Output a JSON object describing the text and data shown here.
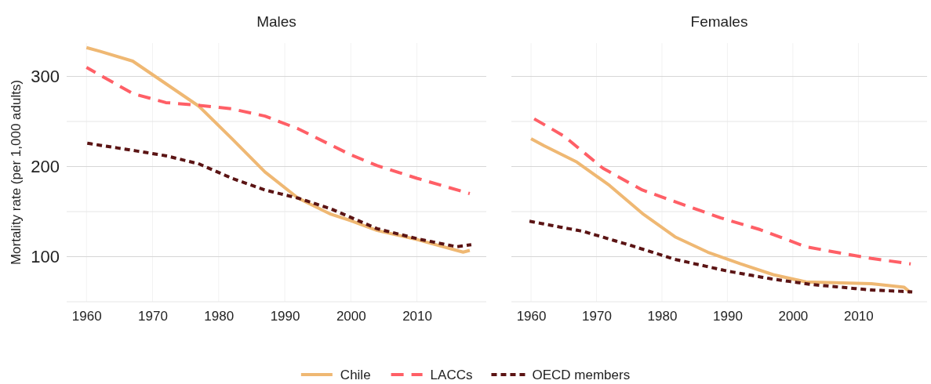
{
  "chart_data": [
    {
      "type": "line",
      "title": "Males",
      "ylabel": "Mortality rate (per 1,000 adults)",
      "xlim": [
        1957,
        2020.5
      ],
      "xticks": [
        1960,
        1970,
        1980,
        1990,
        2000,
        2010
      ],
      "ylim": [
        50,
        337
      ],
      "yticks": [
        {
          "value": 50,
          "label": null
        },
        100,
        {
          "value": 150,
          "label": null
        },
        200,
        {
          "value": 250,
          "label": null
        },
        300
      ],
      "grid": true,
      "legend": "bottom",
      "series": [
        {
          "name": "Chile",
          "color": "#efb873",
          "line_style": "solid",
          "x": [
            1960,
            1962,
            1967,
            1972,
            1977,
            1982,
            1987,
            1992,
            1997,
            2000,
            2004,
            2010,
            2017,
            2018
          ],
          "values": [
            332,
            328,
            317,
            292,
            267,
            231,
            194,
            165,
            147,
            140,
            129,
            119,
            105,
            107
          ]
        },
        {
          "name": "LACCs",
          "color": "#ff5f66",
          "line_style": "dashed",
          "x": [
            1960,
            1967,
            1972,
            1977,
            1982,
            1987,
            1992,
            2000,
            2004,
            2010,
            2018
          ],
          "values": [
            310,
            281,
            271,
            268,
            264,
            256,
            242,
            213,
            201,
            187,
            170
          ]
        },
        {
          "name": "OECD members",
          "color": "#5b1414",
          "line_style": "dotted",
          "x": [
            1960,
            1967,
            1972,
            1977,
            1982,
            1987,
            1992,
            1997,
            2004,
            2010,
            2016,
            2018
          ],
          "values": [
            226,
            218,
            212,
            203,
            187,
            174,
            165,
            153,
            131,
            120,
            111,
            113
          ]
        }
      ]
    },
    {
      "type": "line",
      "title": "Females",
      "xlim": [
        1957,
        2020.5
      ],
      "xticks": [
        1960,
        1970,
        1980,
        1990,
        2000,
        2010
      ],
      "ylim": [
        50,
        337
      ],
      "yticks": [
        {
          "value": 50,
          "label": null
        },
        100,
        {
          "value": 150,
          "label": null
        },
        200,
        {
          "value": 250,
          "label": null
        },
        300
      ],
      "grid": true,
      "tick_labels": "x",
      "series": [
        {
          "color": "#efb873",
          "line_style": "solid",
          "x": [
            1960,
            1962,
            1967,
            1972,
            1977,
            1982,
            1987,
            1992,
            1997,
            2002,
            2012,
            2017,
            2018
          ],
          "values": [
            231,
            223,
            205,
            179,
            148,
            122,
            105,
            92,
            80,
            72,
            70,
            66,
            60
          ]
        },
        {
          "color": "#ff5f66",
          "line_style": "dashed",
          "x": [
            1960,
            1965,
            1971,
            1977,
            1982,
            1989,
            1995,
            2002,
            2008,
            2012,
            2018
          ],
          "values": [
            255,
            234,
            198,
            174,
            161,
            143,
            130,
            111,
            103,
            98,
            92
          ]
        },
        {
          "color": "#5b1414",
          "line_style": "dotted",
          "x": [
            1960,
            1968,
            1975,
            1982,
            1990,
            1997,
            2003,
            2012,
            2018
          ],
          "values": [
            139,
            128,
            113,
            97,
            84,
            75,
            69,
            63,
            61
          ]
        }
      ]
    }
  ]
}
